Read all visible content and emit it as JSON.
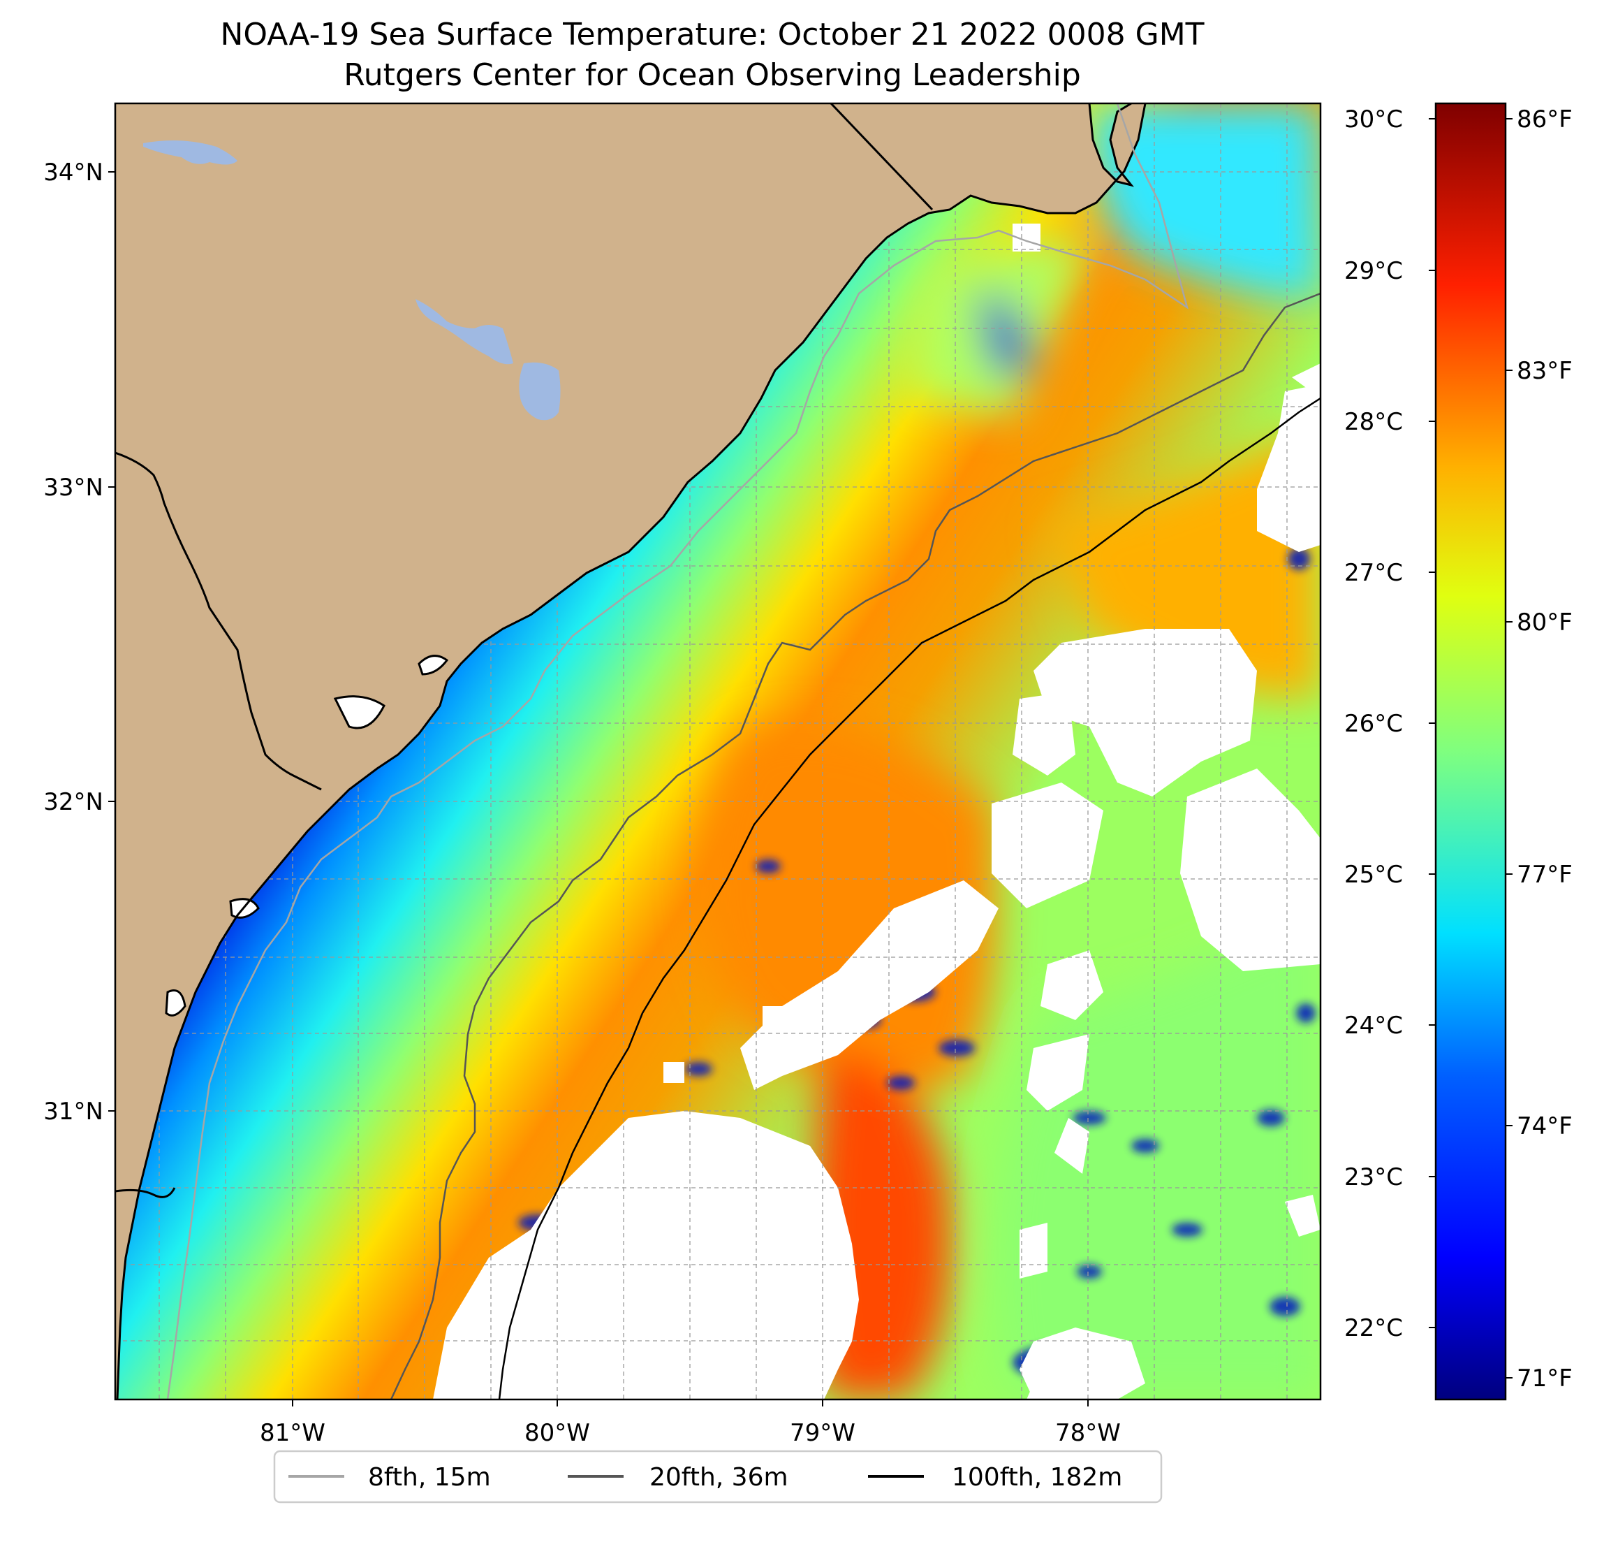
{
  "title": {
    "line1": "NOAA-19 Sea Surface Temperature: October 21 2022 0008 GMT",
    "line2": "Rutgers Center for Ocean Observing Leadership"
  },
  "map": {
    "latitude_labels": [
      {
        "label": "34°N",
        "value": 34
      },
      {
        "label": "33°N",
        "value": 33
      },
      {
        "label": "32°N",
        "value": 32
      },
      {
        "label": "31°N",
        "value": 31
      }
    ],
    "longitude_labels": [
      {
        "label": "81°W",
        "value": -81
      },
      {
        "label": "80°W",
        "value": -80
      },
      {
        "label": "79°W",
        "value": -79
      },
      {
        "label": "78°W",
        "value": -78
      }
    ],
    "land_color": "#d0b28c",
    "lake_color": "#9fb9e2",
    "missing_data_color": "#ffffff"
  },
  "colorbar": {
    "celsius_labels": [
      "30°C",
      "29°C",
      "28°C",
      "27°C",
      "26°C",
      "25°C",
      "24°C",
      "23°C",
      "22°C"
    ],
    "fahrenheit_labels": [
      "86°F",
      "83°F",
      "80°F",
      "77°F",
      "74°F",
      "71°F"
    ],
    "colormap": "jet",
    "colors": [
      "#00007f",
      "#0000ff",
      "#007fff",
      "#00ffff",
      "#7fff7f",
      "#ffff00",
      "#ff7f00",
      "#ff0000",
      "#7f0000"
    ]
  },
  "legend": {
    "items": [
      {
        "label": "8fth, 15m",
        "color": "#a6a6a6"
      },
      {
        "label": "20fth, 36m",
        "color": "#555555"
      },
      {
        "label": "100fth, 182m",
        "color": "#000000"
      }
    ]
  }
}
